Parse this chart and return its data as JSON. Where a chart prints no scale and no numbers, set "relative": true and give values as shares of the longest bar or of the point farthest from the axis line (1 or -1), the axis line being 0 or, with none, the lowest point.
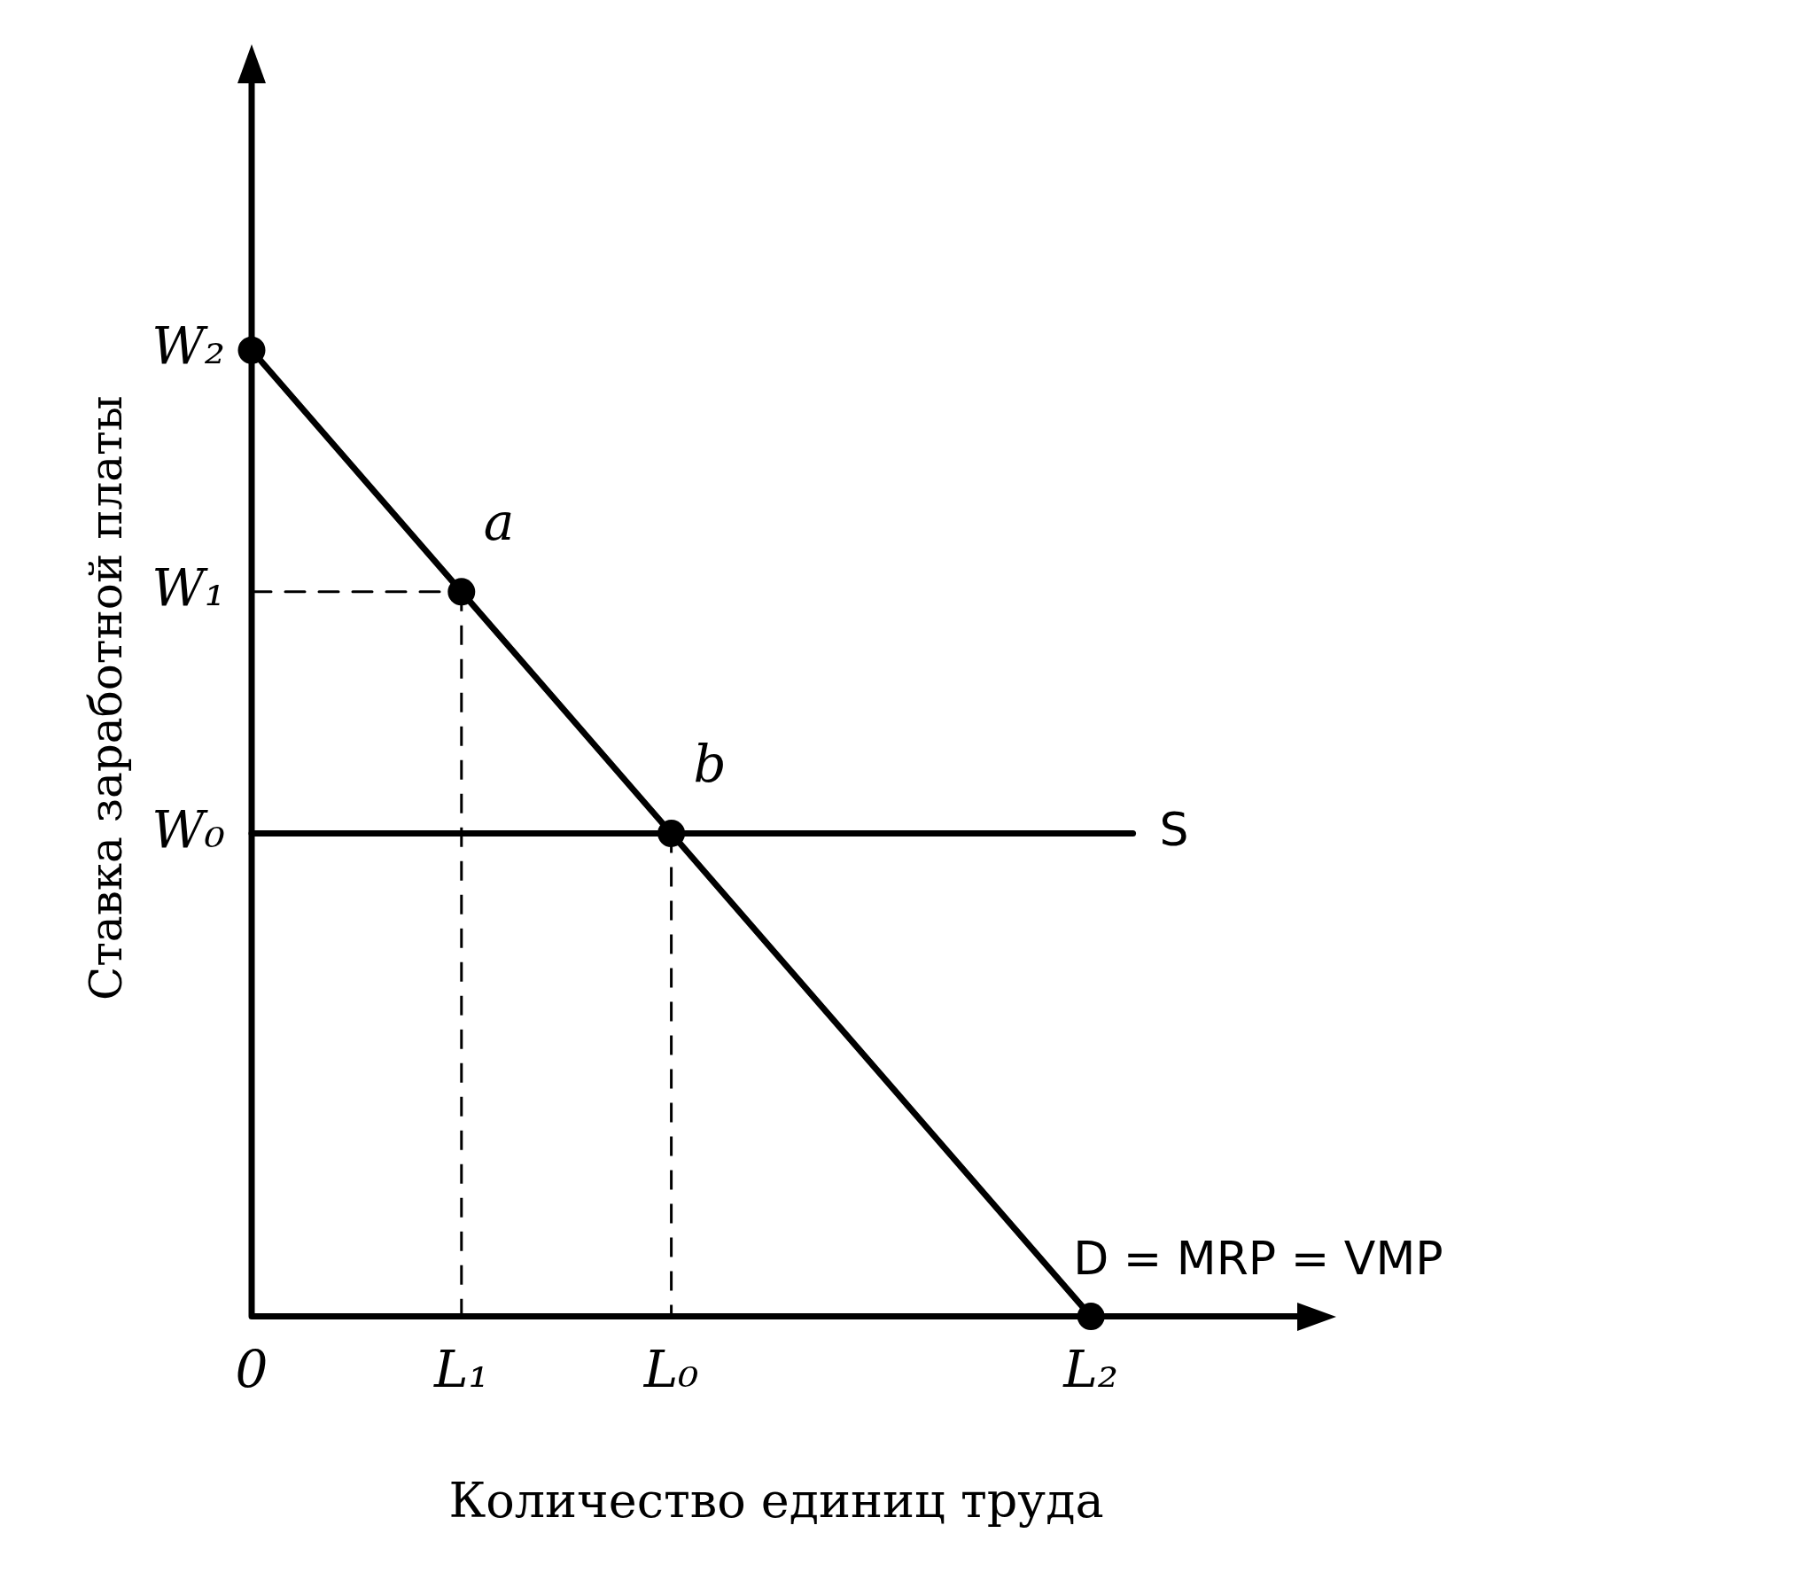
{
  "chart_data": {
    "type": "line",
    "relative": true,
    "xlabel": "Количество единиц труда",
    "ylabel": "Ставка заработной платы",
    "categories": [
      "0",
      null,
      null,
      null,
      null,
      "L₁",
      null,
      null,
      null,
      null,
      "L₀",
      null,
      null,
      null,
      null,
      null,
      null,
      null,
      null,
      null,
      "L₂",
      null,
      null,
      null,
      null,
      null
    ],
    "grid": false,
    "legend": false,
    "series": [
      {
        "name": "D = MRP = VMP",
        "color": "#000000",
        "marker": "circle",
        "line_style": "solid",
        "values": [
          1,
          null,
          null,
          null,
          null,
          0.75,
          null,
          null,
          null,
          null,
          0.5,
          null,
          null,
          null,
          null,
          null,
          null,
          null,
          null,
          null,
          0,
          null,
          null,
          null,
          null,
          null
        ]
      },
      {
        "name": "S",
        "color": "#000000",
        "marker": "none",
        "line_style": "solid",
        "values": [
          0.5,
          null,
          null,
          null,
          null,
          null,
          null,
          null,
          null,
          null,
          null,
          null,
          null,
          null,
          null,
          null,
          null,
          null,
          null,
          null,
          null,
          0.5,
          null,
          null,
          null,
          null
        ]
      },
      {
        "color": "#000000",
        "marker": "none",
        "line_style": "dashed",
        "values": [
          0.75,
          null,
          null,
          null,
          null,
          0.75,
          null,
          null,
          null,
          null,
          null,
          null,
          null,
          null,
          null,
          null,
          null,
          null,
          null,
          null,
          null,
          null,
          null,
          null,
          null,
          null
        ]
      }
    ],
    "annotations": [
      {
        "text": "a",
        "x": "L₁",
        "y": 0.75
      },
      {
        "text": "b",
        "x": "L₀",
        "y": 0.5
      },
      {
        "text": "W₂",
        "x": "0",
        "y": 1
      },
      {
        "text": "W₁",
        "x": "0",
        "y": 0.75
      },
      {
        "text": "W₀",
        "x": "0",
        "y": 0.5
      }
    ]
  }
}
